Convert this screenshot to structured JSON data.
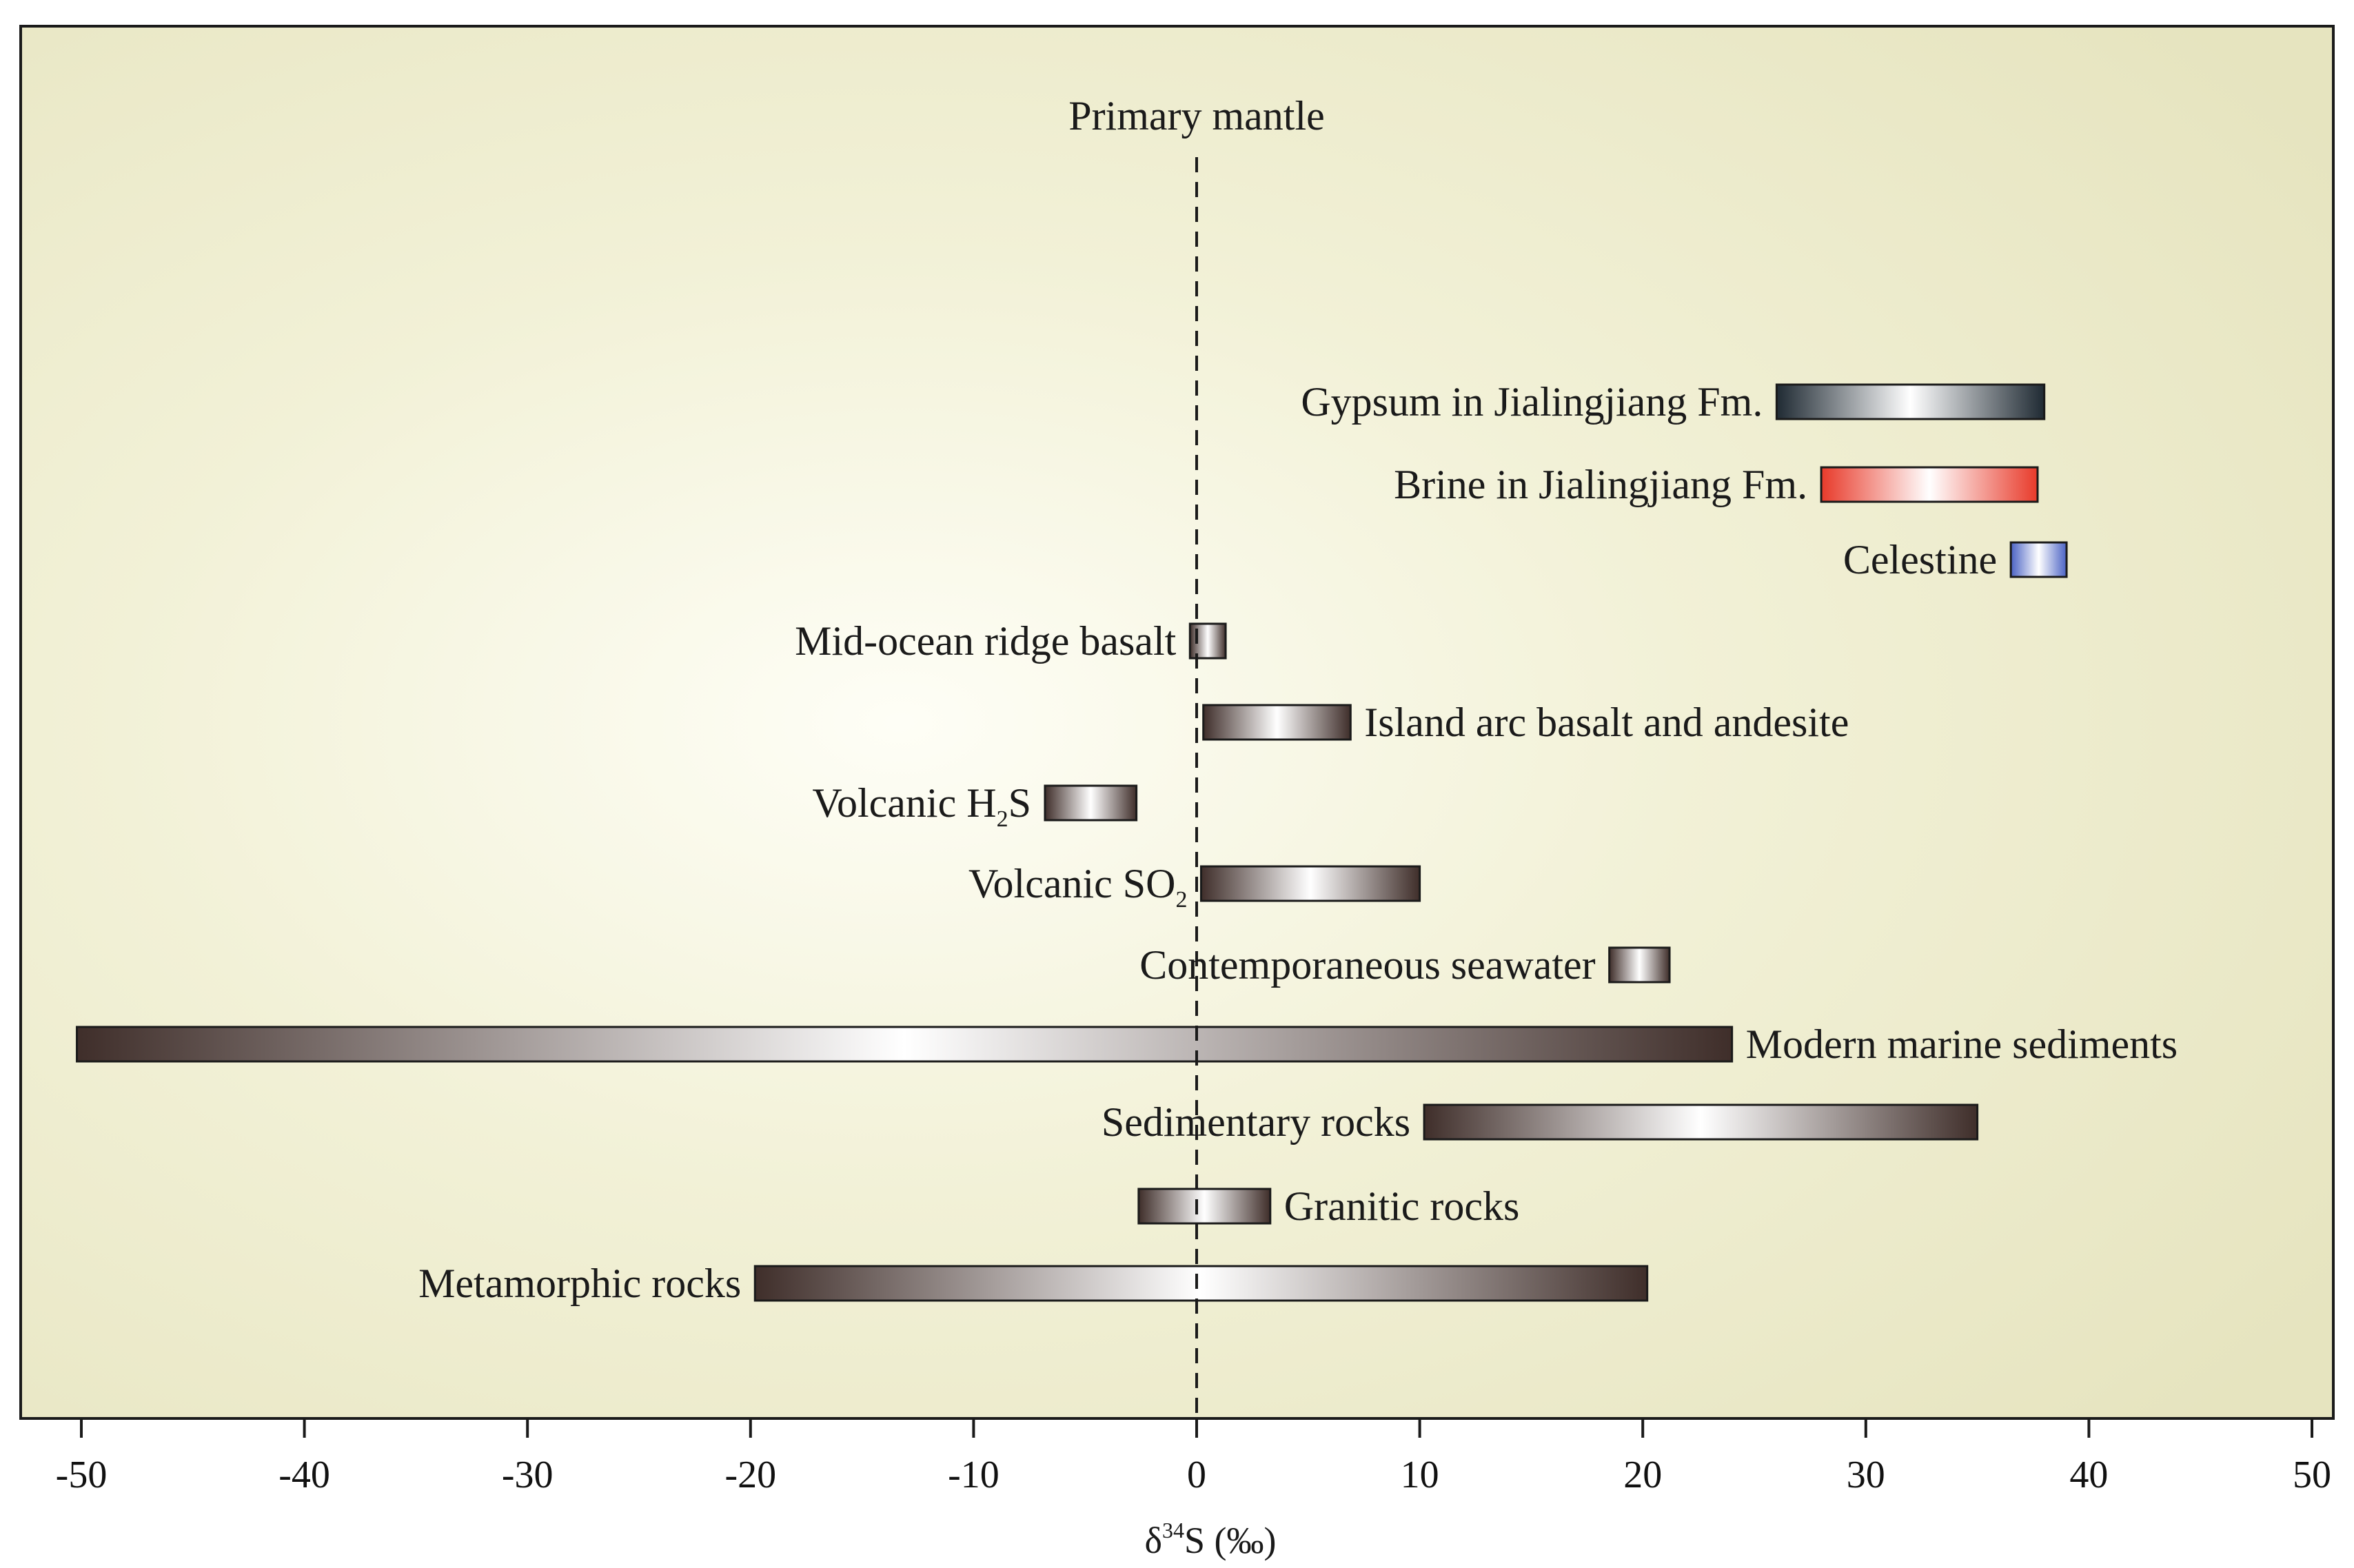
{
  "chart_data": {
    "type": "bar",
    "orientation": "horizontal-range",
    "xlabel_main": "δ",
    "xlabel_sup": "34",
    "xlabel_rest": "S (‰)",
    "xlim": [
      -50,
      50
    ],
    "x_ticks": [
      -50,
      -40,
      -30,
      -20,
      -10,
      0,
      10,
      20,
      30,
      40,
      50
    ],
    "reference_line": {
      "x": 0,
      "label": "Primary mantle",
      "style": "dashed"
    },
    "grid": false,
    "background": "#e8e6c4",
    "series": [
      {
        "label": "Gypsum in Jialingjiang Fm.",
        "min": 26,
        "max": 38,
        "color": "#1f2a33",
        "label_side": "left"
      },
      {
        "label": "Brine in Jialingjiang Fm.",
        "min": 28,
        "max": 37.7,
        "color": "#e83a2a",
        "label_side": "left"
      },
      {
        "label": "Celestine",
        "min": 36.5,
        "max": 39,
        "color": "#4a62c4",
        "label_side": "left"
      },
      {
        "label": "Mid-ocean ridge basalt",
        "min": -0.3,
        "max": 1.3,
        "color": "#3f2e2a",
        "label_side": "left"
      },
      {
        "label": "Island arc basalt and andesite",
        "min": 0.3,
        "max": 6.9,
        "color": "#3f2e2a",
        "label_side": "right"
      },
      {
        "label_main": "Volcanic H",
        "label_sub": "2",
        "label_tail": "S",
        "min": -6.8,
        "max": -2.7,
        "color": "#3f2e2a",
        "label_side": "left"
      },
      {
        "label_main": "Volcanic SO",
        "label_sub": "2",
        "label_tail": "",
        "min": 0.2,
        "max": 10,
        "color": "#3f2e2a",
        "label_side": "left"
      },
      {
        "label": "Contemporaneous seawater",
        "min": 18.5,
        "max": 21.2,
        "color": "#3f2e2a",
        "label_side": "left"
      },
      {
        "label": "Modern marine sediments",
        "min": -50.2,
        "max": 24,
        "color": "#3f2e2a",
        "label_side": "right"
      },
      {
        "label": "Sedimentary rocks",
        "min": 10.2,
        "max": 35,
        "color": "#3f2e2a",
        "label_side": "left"
      },
      {
        "label": "Granitic rocks",
        "min": -2.6,
        "max": 3.3,
        "color": "#3f2e2a",
        "label_side": "right"
      },
      {
        "label": "Metamorphic rocks",
        "min": -19.8,
        "max": 20.2,
        "color": "#3f2e2a",
        "label_side": "left"
      }
    ]
  }
}
